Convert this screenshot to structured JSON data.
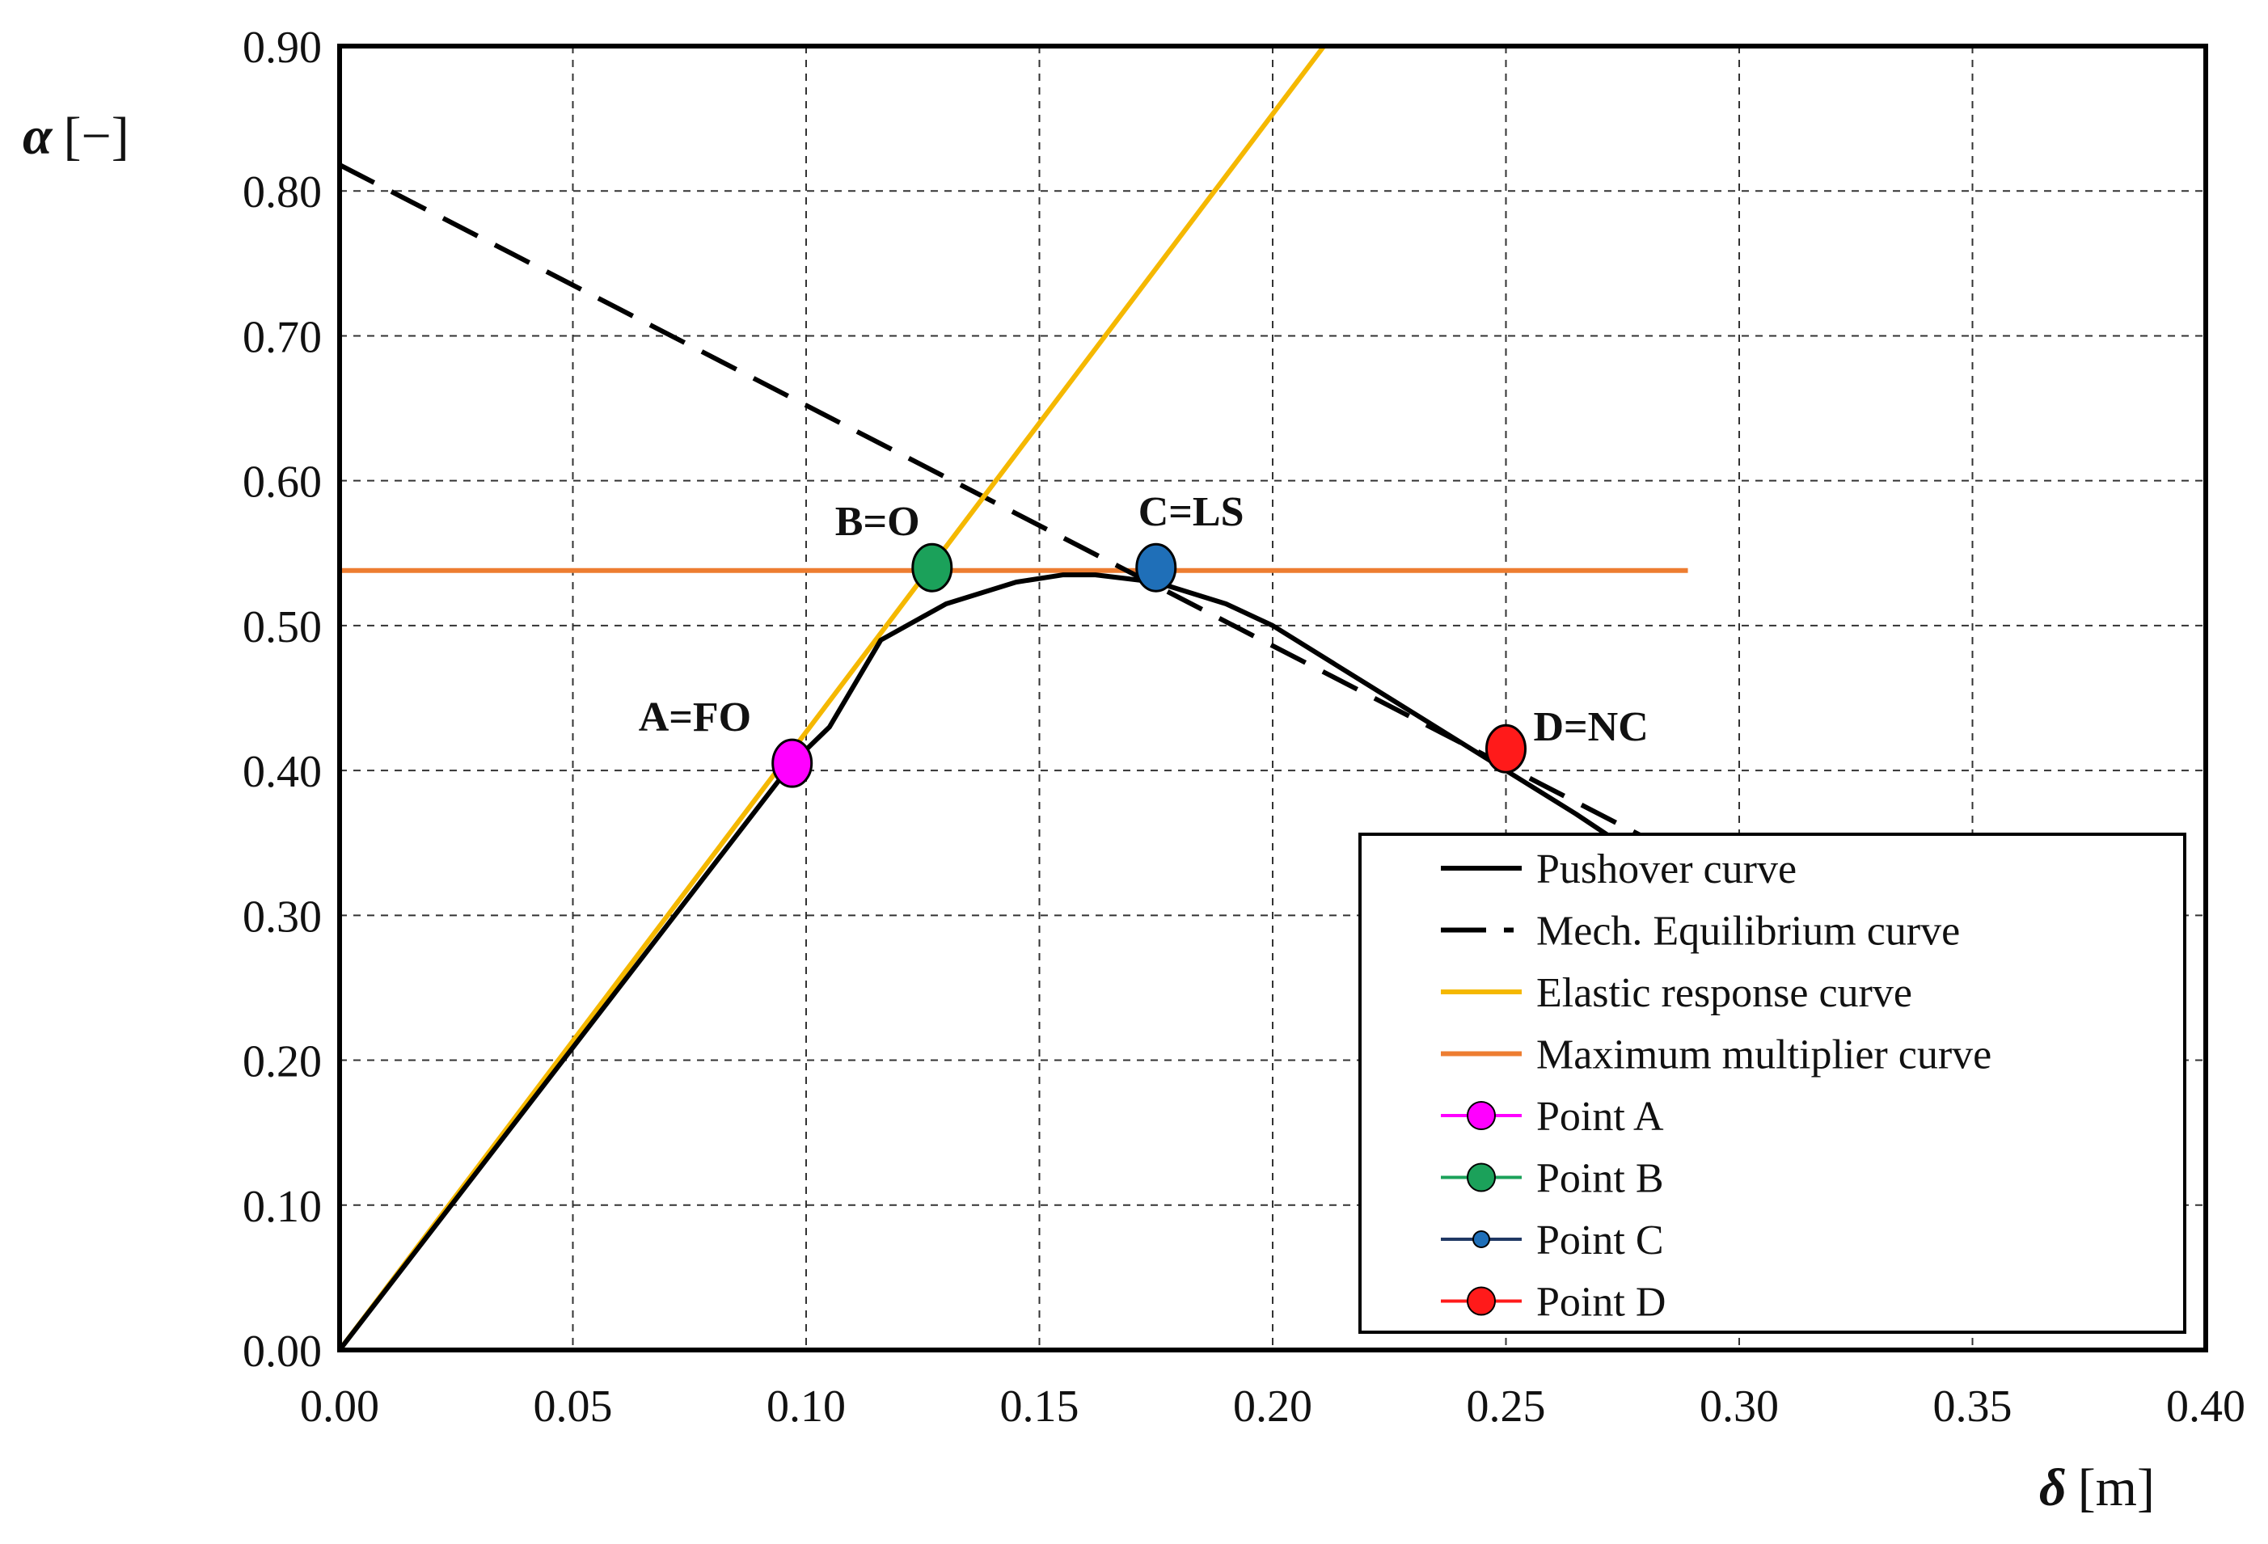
{
  "chart_data": {
    "type": "line",
    "title": "",
    "xlabel": {
      "symbol": "δ",
      "unit": "[m]"
    },
    "ylabel": {
      "symbol": "α",
      "unit": "[−]"
    },
    "xlim": [
      0.0,
      0.4
    ],
    "ylim": [
      0.0,
      0.9
    ],
    "grid": true,
    "x_ticks": [
      "0.00",
      "0.05",
      "0.10",
      "0.15",
      "0.20",
      "0.25",
      "0.30",
      "0.35",
      "0.40"
    ],
    "y_ticks": [
      "0.00",
      "0.10",
      "0.20",
      "0.30",
      "0.40",
      "0.50",
      "0.60",
      "0.70",
      "0.80",
      "0.90"
    ],
    "legend_position": "bottom-right",
    "series": [
      {
        "name": "Pushover curve",
        "style": "solid",
        "color": "#000000",
        "x": [
          0.0,
          0.097,
          0.105,
          0.116,
          0.13,
          0.145,
          0.155,
          0.162,
          0.175,
          0.19,
          0.2,
          0.22,
          0.25,
          0.265,
          0.272
        ],
        "y": [
          0.0,
          0.405,
          0.43,
          0.49,
          0.515,
          0.53,
          0.535,
          0.535,
          0.53,
          0.515,
          0.5,
          0.46,
          0.4,
          0.37,
          0.355
        ]
      },
      {
        "name": "Mech. Equilibrium curve",
        "style": "dashed",
        "color": "#000000",
        "x": [
          0.0,
          0.282
        ],
        "y": [
          0.818,
          0.35
        ]
      },
      {
        "name": "Elastic response curve",
        "style": "solid",
        "color": "#F5B800",
        "x": [
          0.0,
          0.211
        ],
        "y": [
          0.0,
          0.9
        ]
      },
      {
        "name": "Maximum multiplier curve",
        "style": "solid",
        "color": "#ED7D31",
        "x": [
          0.0,
          0.289
        ],
        "y": [
          0.538,
          0.538
        ]
      }
    ],
    "points": [
      {
        "name": "Point A",
        "label": "A=FO",
        "x": 0.097,
        "y": 0.405,
        "color": "#FF00FF"
      },
      {
        "name": "Point B",
        "label": "B=O",
        "x": 0.127,
        "y": 0.54,
        "color": "#1BA15A"
      },
      {
        "name": "Point C",
        "label": "C=LS",
        "x": 0.175,
        "y": 0.54,
        "color": "#1F6FB8"
      },
      {
        "name": "Point D",
        "label": "D=NC",
        "x": 0.25,
        "y": 0.415,
        "color": "#FF1A1A"
      }
    ],
    "legend": [
      {
        "label": "Pushover curve",
        "kind": "line",
        "color": "#000000"
      },
      {
        "label": "Mech. Equilibrium curve",
        "kind": "dash",
        "color": "#000000"
      },
      {
        "label": "Elastic response curve",
        "kind": "line",
        "color": "#F5B800"
      },
      {
        "label": "Maximum multiplier curve",
        "kind": "line",
        "color": "#ED7D31"
      },
      {
        "label": "Point A",
        "kind": "marker",
        "color": "#FF00FF",
        "line_color": "#FF00FF"
      },
      {
        "label": "Point B",
        "kind": "marker",
        "color": "#1BA15A",
        "line_color": "#1BA15A"
      },
      {
        "label": "Point C",
        "kind": "marker-small",
        "color": "#1F6FB8",
        "line_color": "#203864"
      },
      {
        "label": "Point D",
        "kind": "marker",
        "color": "#FF1A1A",
        "line_color": "#FF1A1A"
      }
    ]
  }
}
